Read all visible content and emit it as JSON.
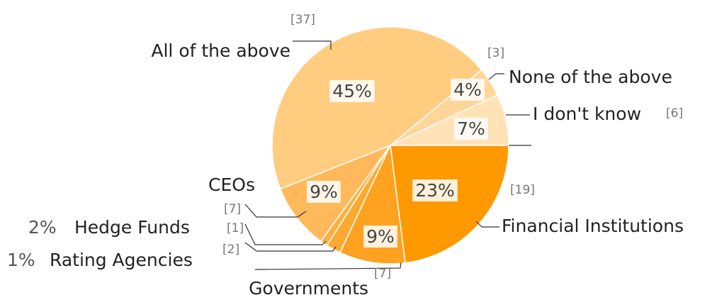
{
  "chart_data": {
    "type": "pie",
    "categories": [
      "Financial Institutions",
      "Governments",
      "Rating Agencies",
      "Hedge Funds",
      "CEOs",
      "All of the above",
      "None of the above",
      "I don't know"
    ],
    "values": [
      23,
      9,
      2,
      1,
      9,
      45,
      4,
      7
    ],
    "value_labels": [
      "23%",
      "9%",
      "2%",
      "1%",
      "9%",
      "45%",
      "4%",
      "7%"
    ],
    "count_labels": [
      "[19]",
      "[7]",
      "[2]",
      "[1]",
      "[7]",
      "[37]",
      "[3]",
      "[6]"
    ],
    "colors": [
      "#ff9900",
      "#ffa21f",
      "#ffa930",
      "#ffb040",
      "#ffb95a",
      "#ffcc80",
      "#ffd699",
      "#ffe2b5"
    ]
  }
}
